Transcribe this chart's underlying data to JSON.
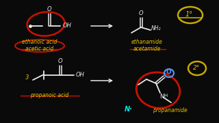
{
  "bg_color": "#0a0a0a",
  "fig_w": 3.2,
  "fig_h": 1.8,
  "dpi": 100,
  "top_left": {
    "label1": "ethanoic acid",
    "label2": "acetic acid"
  },
  "top_right": {
    "label1": "ethanamide",
    "label2": "acetamide",
    "degree": "1°"
  },
  "bottom_left": {
    "label1": "propanoic acid"
  },
  "bottom_right": {
    "label1": "propanamide",
    "degree": "2°"
  },
  "white": "#e8e8e8",
  "yellow": "#e8c000",
  "red": "#cc1100",
  "yell_circ": "#c8a800",
  "cyan": "#00e8e8",
  "blue_o": "#5599ff"
}
